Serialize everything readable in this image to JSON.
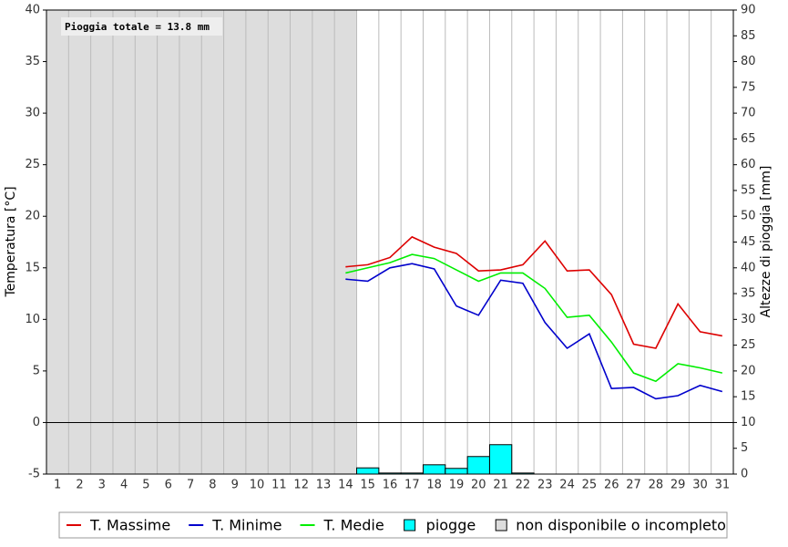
{
  "chart_data": {
    "type": "line",
    "annotation": "Pioggia totale = 13.8 mm",
    "ylabel": "Temperatura [°C]",
    "y2label": "Altezze di pioggia [mm]",
    "categories": [
      "1",
      "2",
      "3",
      "4",
      "5",
      "6",
      "7",
      "8",
      "9",
      "10",
      "11",
      "12",
      "13",
      "14",
      "15",
      "16",
      "17",
      "18",
      "19",
      "20",
      "21",
      "22",
      "23",
      "24",
      "25",
      "26",
      "27",
      "28",
      "29",
      "30",
      "31"
    ],
    "ylim": [
      -5,
      40
    ],
    "yticks": [
      -5,
      0,
      5,
      10,
      15,
      20,
      25,
      30,
      35,
      40
    ],
    "y2lim": [
      0,
      90
    ],
    "y2ticks": [
      0,
      5,
      10,
      15,
      20,
      25,
      30,
      35,
      40,
      45,
      50,
      55,
      60,
      65,
      70,
      75,
      80,
      85,
      90
    ],
    "grid": true,
    "unavailable": {
      "label": "non disponibile o incompleto",
      "from": 1,
      "to": 14,
      "color": "#dddddd"
    },
    "series": [
      {
        "name": "T. Massime",
        "color": "#dd0000",
        "values": [
          null,
          null,
          null,
          null,
          null,
          null,
          null,
          null,
          null,
          null,
          null,
          null,
          null,
          15.1,
          15.3,
          16.0,
          18.0,
          17.0,
          16.4,
          14.7,
          14.8,
          15.3,
          17.6,
          14.7,
          14.8,
          12.4,
          7.6,
          7.2,
          11.5,
          8.8,
          8.4
        ]
      },
      {
        "name": "T. Minime",
        "color": "#0000cc",
        "values": [
          null,
          null,
          null,
          null,
          null,
          null,
          null,
          null,
          null,
          null,
          null,
          null,
          null,
          13.9,
          13.7,
          15.0,
          15.4,
          14.9,
          11.3,
          10.4,
          13.8,
          13.5,
          9.7,
          7.2,
          8.6,
          3.3,
          3.4,
          2.3,
          2.6,
          3.6,
          3.0
        ]
      },
      {
        "name": "T. Medie",
        "color": "#00ee00",
        "values": [
          null,
          null,
          null,
          null,
          null,
          null,
          null,
          null,
          null,
          null,
          null,
          null,
          null,
          14.5,
          15.0,
          15.5,
          16.3,
          15.9,
          14.8,
          13.7,
          14.5,
          14.5,
          13.0,
          10.2,
          10.4,
          7.8,
          4.8,
          4.0,
          5.7,
          5.3,
          4.8
        ]
      },
      {
        "name": "piogge",
        "color": "#00ffff",
        "axis": "y2",
        "type": "bar",
        "values": [
          null,
          null,
          null,
          null,
          null,
          null,
          null,
          null,
          null,
          null,
          null,
          null,
          null,
          null,
          1.2,
          0.2,
          0.2,
          1.8,
          1.1,
          3.4,
          5.7,
          0.2,
          0,
          0,
          0,
          0,
          0,
          0,
          0,
          0,
          0
        ]
      }
    ]
  }
}
